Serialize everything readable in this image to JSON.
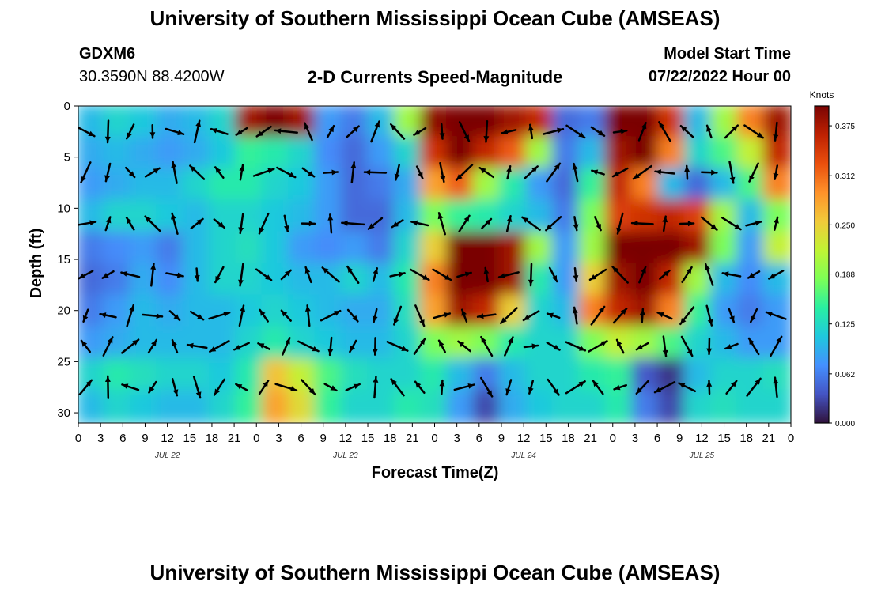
{
  "page": {
    "title_top": "University of Southern Mississippi Ocean Cube (AMSEAS)",
    "title_bottom": "University of Southern Mississippi Ocean Cube (AMSEAS)",
    "station": "GDXM6",
    "coords": "30.3590N  88.4200W",
    "plot_title": "2-D Currents Speed-Magnitude",
    "model_start_label": "Model Start Time",
    "model_start_value": "07/22/2022 Hour 00"
  },
  "chart_data": {
    "type": "heatmap",
    "title": "2-D Currents Speed-Magnitude",
    "xlabel": "Forecast Time(Z)",
    "ylabel": "Depth (ft)",
    "x_range_hours": [
      0,
      96
    ],
    "y_range_ft": [
      0,
      31
    ],
    "y_inverted": true,
    "x_tick_labels": [
      "0",
      "3",
      "6",
      "9",
      "12",
      "15",
      "18",
      "21",
      "0",
      "3",
      "6",
      "9",
      "12",
      "15",
      "18",
      "21",
      "0",
      "3",
      "6",
      "9",
      "12",
      "15",
      "18",
      "21",
      "0",
      "3",
      "6",
      "9",
      "12",
      "15",
      "18",
      "21",
      "0"
    ],
    "y_ticks": [
      0,
      5,
      10,
      15,
      20,
      25,
      30
    ],
    "date_labels": [
      {
        "label": "JUL 22",
        "hour": 12
      },
      {
        "label": "JUL 23",
        "hour": 36
      },
      {
        "label": "JUL 24",
        "hour": 60
      },
      {
        "label": "JUL 25",
        "hour": 84
      }
    ],
    "colorbar": {
      "label": "Knots",
      "range": [
        0,
        0.4
      ],
      "ticks": [
        "0.375",
        "0.312",
        "0.250",
        "0.188",
        "0.125",
        "0.062",
        "0.000"
      ],
      "tick_values": [
        0.375,
        0.312,
        0.25,
        0.188,
        0.125,
        0.062,
        0.0
      ],
      "colors": [
        "#30123b",
        "#4454c4",
        "#4490fe",
        "#1fc8de",
        "#29efa2",
        "#7dff56",
        "#c1f334",
        "#f1ca3a",
        "#fe922a",
        "#ea4f0d",
        "#be2102",
        "#7a0403"
      ]
    },
    "speed_field_knots": [
      [
        0.1,
        0.12,
        0.11,
        0.09,
        0.1,
        0.12,
        0.38,
        0.4,
        0.38,
        0.08,
        0.06,
        0.1,
        0.2,
        0.39,
        0.42,
        0.4,
        0.38,
        0.36,
        0.05,
        0.06,
        0.4,
        0.42,
        0.35,
        0.1,
        0.2,
        0.3,
        0.38
      ],
      [
        0.09,
        0.1,
        0.09,
        0.08,
        0.09,
        0.11,
        0.15,
        0.14,
        0.12,
        0.07,
        0.05,
        0.08,
        0.12,
        0.35,
        0.4,
        0.36,
        0.32,
        0.2,
        0.06,
        0.1,
        0.38,
        0.4,
        0.3,
        0.12,
        0.16,
        0.22,
        0.36
      ],
      [
        0.08,
        0.09,
        0.1,
        0.1,
        0.12,
        0.14,
        0.14,
        0.12,
        0.11,
        0.08,
        0.05,
        0.06,
        0.09,
        0.28,
        0.32,
        0.2,
        0.14,
        0.08,
        0.05,
        0.15,
        0.36,
        0.3,
        0.1,
        0.05,
        0.1,
        0.16,
        0.3
      ],
      [
        0.1,
        0.12,
        0.12,
        0.11,
        0.1,
        0.12,
        0.12,
        0.11,
        0.1,
        0.08,
        0.05,
        0.05,
        0.1,
        0.18,
        0.15,
        0.14,
        0.12,
        0.1,
        0.06,
        0.18,
        0.34,
        0.35,
        0.36,
        0.34,
        0.2,
        0.1,
        0.18
      ],
      [
        0.06,
        0.07,
        0.08,
        0.06,
        0.1,
        0.12,
        0.13,
        0.11,
        0.08,
        0.07,
        0.08,
        0.06,
        0.12,
        0.25,
        0.4,
        0.42,
        0.38,
        0.2,
        0.08,
        0.2,
        0.4,
        0.42,
        0.4,
        0.38,
        0.18,
        0.08,
        0.22
      ],
      [
        0.05,
        0.06,
        0.09,
        0.07,
        0.1,
        0.12,
        0.12,
        0.11,
        0.1,
        0.1,
        0.12,
        0.1,
        0.14,
        0.3,
        0.4,
        0.42,
        0.38,
        0.14,
        0.08,
        0.25,
        0.38,
        0.4,
        0.36,
        0.2,
        0.1,
        0.07,
        0.1
      ],
      [
        0.06,
        0.08,
        0.1,
        0.09,
        0.1,
        0.1,
        0.11,
        0.12,
        0.11,
        0.1,
        0.09,
        0.09,
        0.13,
        0.28,
        0.38,
        0.36,
        0.25,
        0.12,
        0.1,
        0.3,
        0.36,
        0.38,
        0.3,
        0.15,
        0.08,
        0.06,
        0.08
      ],
      [
        0.08,
        0.09,
        0.1,
        0.1,
        0.1,
        0.1,
        0.12,
        0.14,
        0.12,
        0.11,
        0.1,
        0.1,
        0.12,
        0.18,
        0.2,
        0.18,
        0.14,
        0.12,
        0.12,
        0.18,
        0.22,
        0.2,
        0.16,
        0.12,
        0.1,
        0.08,
        0.08
      ],
      [
        0.12,
        0.14,
        0.13,
        0.12,
        0.12,
        0.11,
        0.14,
        0.26,
        0.22,
        0.16,
        0.13,
        0.12,
        0.12,
        0.14,
        0.1,
        0.06,
        0.1,
        0.12,
        0.12,
        0.14,
        0.15,
        0.04,
        0.02,
        0.1,
        0.12,
        0.12,
        0.13
      ],
      [
        0.1,
        0.12,
        0.11,
        0.1,
        0.1,
        0.12,
        0.15,
        0.28,
        0.24,
        0.15,
        0.12,
        0.12,
        0.14,
        0.13,
        0.08,
        0.03,
        0.09,
        0.11,
        0.12,
        0.12,
        0.14,
        0.06,
        0.03,
        0.12,
        0.13,
        0.12,
        0.12
      ]
    ]
  }
}
